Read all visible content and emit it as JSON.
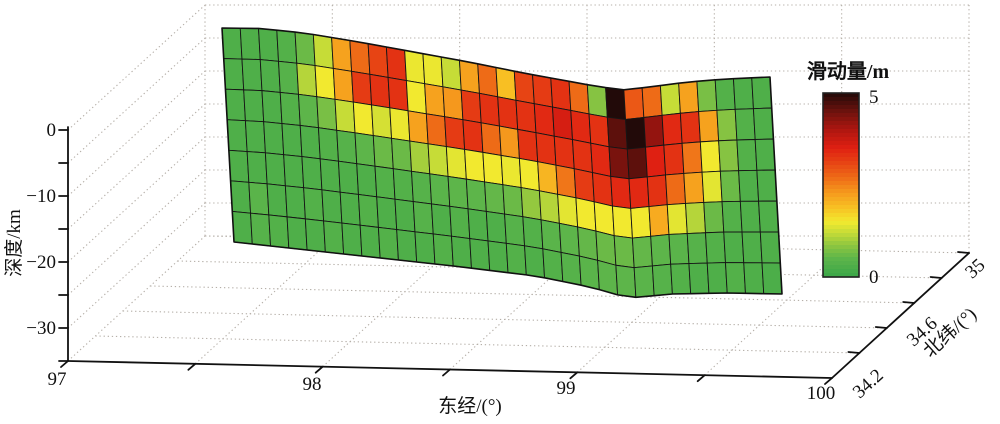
{
  "axes": {
    "depth": {
      "label": "深度/km",
      "tick_labels": [
        "0",
        "−10",
        "−20",
        "−30"
      ]
    },
    "longitude": {
      "label": "东经/(°)",
      "tick_labels": [
        "97",
        "98",
        "99",
        "100"
      ]
    },
    "latitude": {
      "label": "北纬/(°)",
      "tick_labels": [
        "34.2",
        "34.6",
        "35"
      ]
    }
  },
  "colorbar": {
    "title": "滑动量/m",
    "max_label": "5",
    "min_label": "0"
  },
  "chart_data": {
    "type": "heatmap",
    "description": "3D fault-plane mesh showing slip distribution (滑动量/m) versus longitude, latitude and depth",
    "x_axis": {
      "label": "东经/(°)",
      "range": [
        97,
        100
      ],
      "major_ticks": [
        97,
        98,
        99,
        100
      ],
      "minor_ticks": [
        97.5,
        98.5,
        99.5
      ]
    },
    "y_axis": {
      "label": "北纬/(°)",
      "range": [
        34,
        35
      ],
      "major_ticks": [
        34.2,
        34.6,
        35
      ],
      "minor_ticks": [
        34.4,
        34.8
      ]
    },
    "z_axis": {
      "label": "深度/km",
      "range": [
        -35,
        0
      ],
      "major_ticks": [
        0,
        -10,
        -20,
        -30
      ],
      "minor_ticks": [
        -5,
        -15,
        -25,
        -35
      ]
    },
    "colorbar": {
      "label": "滑动量/m",
      "min": 0,
      "max": 5,
      "tick_labels": [
        5,
        0
      ]
    },
    "grid": true,
    "legend_position": "right",
    "mesh": {
      "rows": 7,
      "cols": 30
    },
    "colormap_stops": [
      {
        "v": 0.0,
        "c": "#3aa648"
      },
      {
        "v": 0.5,
        "c": "#5db54a"
      },
      {
        "v": 0.9,
        "c": "#94c83f"
      },
      {
        "v": 1.2,
        "c": "#c6dc37"
      },
      {
        "v": 1.5,
        "c": "#f2e92f"
      },
      {
        "v": 1.9,
        "c": "#f8bf23"
      },
      {
        "v": 2.3,
        "c": "#f5981d"
      },
      {
        "v": 2.7,
        "c": "#ee6b17"
      },
      {
        "v": 3.1,
        "c": "#e74414"
      },
      {
        "v": 3.5,
        "c": "#df2012"
      },
      {
        "v": 4.0,
        "c": "#ae1610"
      },
      {
        "v": 4.5,
        "c": "#6c120d"
      },
      {
        "v": 5.0,
        "c": "#220a09"
      }
    ],
    "slip_values_m": [
      [
        0.3,
        0.3,
        0.3,
        0.35,
        0.6,
        1.2,
        2.2,
        2.7,
        3.1,
        3.3,
        1.45,
        1.45,
        1.2,
        2.2,
        2.7,
        1.9,
        3.1,
        3.2,
        3.3,
        2.7,
        0.8,
        5.0,
        2.9,
        2.7,
        1.2,
        2.2,
        0.7,
        0.35,
        0.3,
        0.3
      ],
      [
        0.3,
        0.3,
        0.3,
        0.4,
        1.1,
        1.5,
        2.2,
        3.2,
        3.3,
        3.3,
        1.5,
        2.2,
        2.3,
        3.2,
        3.3,
        3.3,
        3.3,
        3.4,
        3.6,
        3.4,
        3.3,
        4.6,
        5.0,
        4.2,
        3.4,
        3.3,
        2.2,
        0.8,
        0.35,
        0.3
      ],
      [
        0.3,
        0.3,
        0.3,
        0.35,
        0.5,
        0.7,
        1.2,
        1.5,
        1.3,
        1.45,
        2.2,
        2.7,
        3.2,
        3.3,
        2.7,
        2.3,
        3.3,
        3.3,
        3.3,
        3.3,
        3.4,
        4.4,
        4.6,
        3.5,
        3.3,
        2.6,
        1.5,
        0.8,
        0.35,
        0.3
      ],
      [
        0.3,
        0.3,
        0.3,
        0.3,
        0.3,
        0.35,
        0.4,
        0.5,
        0.6,
        0.6,
        1.0,
        1.2,
        1.4,
        1.5,
        1.5,
        1.45,
        1.5,
        2.0,
        2.6,
        3.2,
        3.3,
        3.4,
        3.4,
        3.3,
        2.7,
        2.2,
        1.4,
        0.6,
        0.3,
        0.3
      ],
      [
        0.3,
        0.3,
        0.3,
        0.3,
        0.3,
        0.3,
        0.3,
        0.3,
        0.35,
        0.35,
        0.4,
        0.45,
        0.5,
        0.5,
        0.55,
        0.6,
        0.9,
        1.1,
        1.4,
        1.5,
        1.5,
        1.5,
        1.5,
        2.1,
        1.4,
        1.1,
        0.6,
        0.35,
        0.3,
        0.3
      ],
      [
        0.3,
        0.45,
        0.3,
        0.3,
        0.35,
        0.3,
        0.3,
        0.35,
        0.3,
        0.3,
        0.4,
        0.3,
        0.35,
        0.3,
        0.3,
        0.4,
        0.35,
        0.45,
        0.5,
        0.55,
        0.6,
        0.6,
        0.55,
        0.5,
        0.45,
        0.4,
        0.35,
        0.3,
        0.3,
        0.3
      ],
      [
        0.3,
        0.4,
        0.35,
        0.3,
        0.3,
        0.35,
        0.3,
        0.3,
        0.35,
        0.3,
        0.3,
        0.35,
        0.3,
        0.3,
        0.3,
        0.35,
        0.3,
        0.35,
        0.4,
        0.45,
        0.5,
        0.5,
        0.45,
        0.4,
        0.35,
        0.3,
        0.3,
        0.35,
        0.3,
        0.25
      ]
    ]
  }
}
